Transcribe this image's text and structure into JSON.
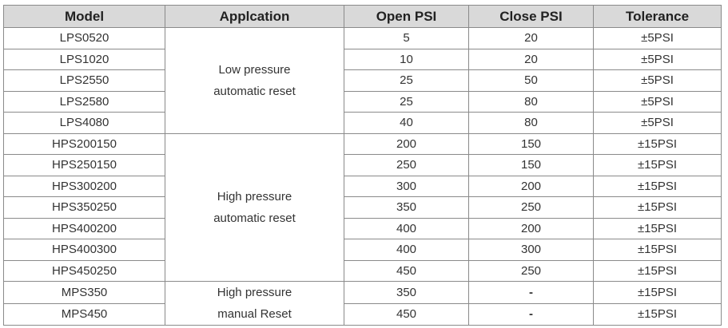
{
  "table": {
    "headers": [
      "Model",
      "Applcation",
      "Open PSI",
      "Close PSI",
      "Tolerance"
    ],
    "groups": [
      {
        "application": [
          "Low pressure",
          "automatic reset"
        ],
        "rows": [
          {
            "model": "LPS0520",
            "open": "5",
            "close": "20",
            "tolerance": "±5PSI"
          },
          {
            "model": "LPS1020",
            "open": "10",
            "close": "20",
            "tolerance": "±5PSI"
          },
          {
            "model": "LPS2550",
            "open": "25",
            "close": "50",
            "tolerance": "±5PSI"
          },
          {
            "model": "LPS2580",
            "open": "25",
            "close": "80",
            "tolerance": "±5PSI"
          },
          {
            "model": "LPS4080",
            "open": "40",
            "close": "80",
            "tolerance": "±5PSI"
          }
        ]
      },
      {
        "application": [
          "High pressure",
          "automatic reset"
        ],
        "rows": [
          {
            "model": "HPS200150",
            "open": "200",
            "close": "150",
            "tolerance": "±15PSI"
          },
          {
            "model": "HPS250150",
            "open": "250",
            "close": "150",
            "tolerance": "±15PSI"
          },
          {
            "model": "HPS300200",
            "open": "300",
            "close": "200",
            "tolerance": "±15PSI"
          },
          {
            "model": "HPS350250",
            "open": "350",
            "close": "250",
            "tolerance": "±15PSI"
          },
          {
            "model": "HPS400200",
            "open": "400",
            "close": "200",
            "tolerance": "±15PSI"
          },
          {
            "model": "HPS400300",
            "open": "400",
            "close": "300",
            "tolerance": "±15PSI"
          },
          {
            "model": "HPS450250",
            "open": "450",
            "close": "250",
            "tolerance": "±15PSI"
          }
        ]
      },
      {
        "application": [
          "High pressure",
          "manual Reset"
        ],
        "rows": [
          {
            "model": "MPS350",
            "open": "350",
            "close": "-",
            "tolerance": "±15PSI"
          },
          {
            "model": "MPS450",
            "open": "450",
            "close": "-",
            "tolerance": "±15PSI"
          }
        ]
      }
    ]
  }
}
